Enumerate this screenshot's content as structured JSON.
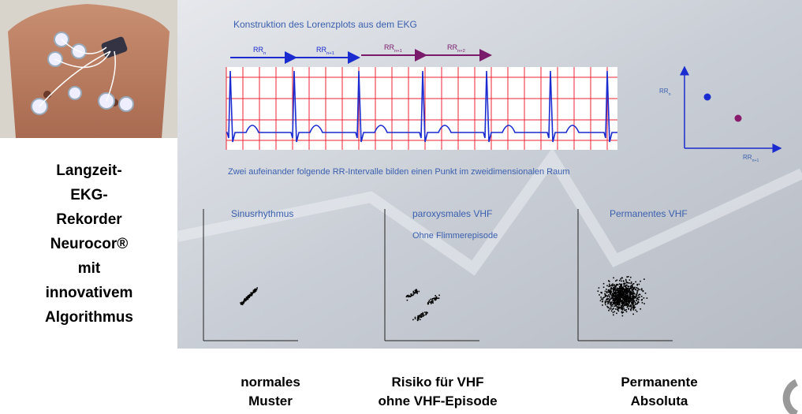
{
  "side_text": [
    "Langzeit-",
    "EKG-",
    "Rekorder",
    "Neurocor®",
    "mit",
    "innovativem",
    "Algorithmus"
  ],
  "panel": {
    "title": "Konstruktion des Lorenzplots aus dem EKG",
    "rr_labels": [
      {
        "base": "RR",
        "sub": "n"
      },
      {
        "base": "RR",
        "sub": "n+1"
      },
      {
        "base": "RR",
        "sub": "n+1"
      },
      {
        "base": "RR",
        "sub": "n+2"
      }
    ],
    "caption": "Zwei aufeinander folgende RR-Intervalle bilden einen Punkt im zweidimensionalen Raum",
    "mini_axes": {
      "y": {
        "base": "RR",
        "sub": "n"
      },
      "x": {
        "base": "RR",
        "sub": "n+1"
      }
    },
    "plots": [
      {
        "title": "Sinusrhythmus"
      },
      {
        "title": "paroxysmales VHF",
        "subtitle": "Ohne Flimmerepisode"
      },
      {
        "title": "Permanentes VHF"
      }
    ]
  },
  "bottom_labels": [
    [
      "normales",
      "Muster"
    ],
    [
      "Risiko für VHF",
      "ohne VHF-Episode"
    ],
    [
      "Permanente",
      "Absoluta"
    ]
  ]
}
